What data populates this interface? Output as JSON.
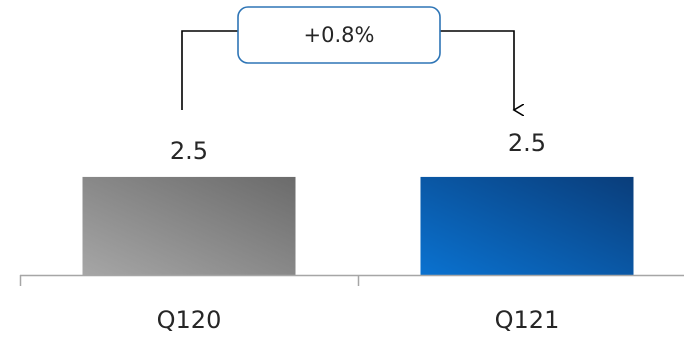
{
  "chart_data": {
    "type": "bar",
    "categories": [
      "Q120",
      "Q121"
    ],
    "values": [
      2.5,
      2.5
    ],
    "value_labels": [
      "2.5",
      "2.5"
    ],
    "ylim": [
      0,
      6.5
    ],
    "grid": false,
    "legend": "none",
    "annotation": {
      "text": "+0.8%",
      "from": "Q120",
      "to": "Q121"
    },
    "colors": {
      "bars": [
        {
          "dark": "#6b6b6b",
          "light": "#a6a6a6"
        },
        {
          "dark": "#0a3d7a",
          "light": "#0a72d0"
        }
      ],
      "annotation_border": "#2e75b6",
      "axis": "#a6a6a6",
      "text": "#262626"
    }
  }
}
